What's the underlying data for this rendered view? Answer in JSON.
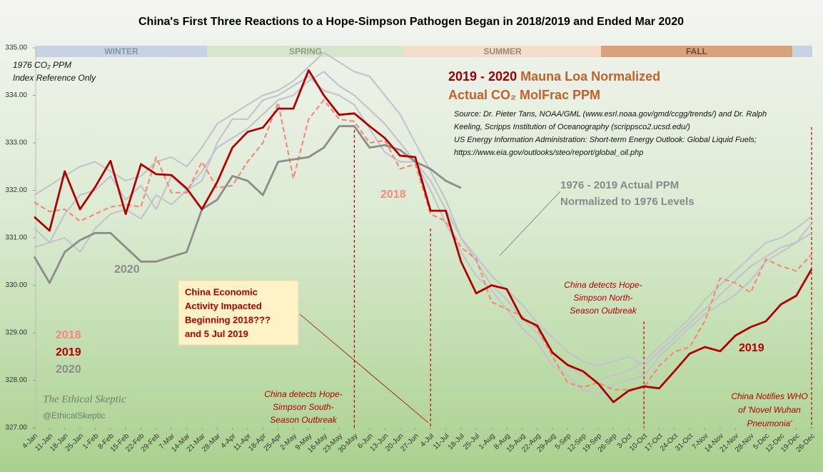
{
  "chart_data": {
    "type": "line",
    "title": "China's First Three Reactions to a Hope-Simpson Pathogen Began in 2018/2019 and Ended Mar 2020",
    "categories": [
      "4-Jan",
      "11-Jan",
      "18-Jan",
      "25-Jan",
      "1-Feb",
      "8-Feb",
      "15-Feb",
      "22-Feb",
      "29-Feb",
      "7-Mar",
      "14-Mar",
      "21-Mar",
      "28-Mar",
      "4-Apr",
      "11-Apr",
      "18-Apr",
      "25-Apr",
      "2-May",
      "9-May",
      "16-May",
      "23-May",
      "30-May",
      "6-Jun",
      "13-Jun",
      "20-Jun",
      "27-Jun",
      "4-Jul",
      "11-Jul",
      "18-Jul",
      "25-Jul",
      "1-Aug",
      "8-Aug",
      "15-Aug",
      "22-Aug",
      "29-Aug",
      "5-Sep",
      "12-Sep",
      "19-Sep",
      "26-Sep",
      "3-Oct",
      "10-Oct",
      "17-Oct",
      "24-Oct",
      "31-Oct",
      "7-Nov",
      "14-Nov",
      "21-Nov",
      "28-Nov",
      "5-Dec",
      "12-Dec",
      "19-Dec",
      "26-Dec"
    ],
    "ylim": [
      327,
      335
    ],
    "yticks": [
      {
        "value": 327,
        "label": "327.00"
      },
      {
        "value": 328,
        "label": "328.00"
      },
      {
        "value": 329,
        "label": "329.00"
      },
      {
        "value": 330,
        "label": "330.00"
      },
      {
        "value": 331,
        "label": "331.00"
      },
      {
        "value": 332,
        "label": "332.00"
      },
      {
        "value": 333,
        "label": "333.00"
      },
      {
        "value": 334,
        "label": "334.00"
      },
      {
        "value": 335,
        "label": "335.00"
      }
    ],
    "series": [
      {
        "color": "#c4c4cc",
        "values": [
          331.9,
          332.1,
          332.3,
          332.5,
          332.6,
          332.4,
          332.2,
          332.3,
          332.6,
          332.7,
          332.5,
          332.9,
          333.4,
          333.6,
          333.8,
          334.0,
          334.1,
          334.3,
          334.6,
          334.9,
          334.7,
          334.5,
          334.4,
          334.0,
          333.6,
          333.0,
          332.4,
          331.8,
          331.0,
          330.5,
          330.0,
          329.7,
          329.3,
          329.0,
          328.6,
          328.3,
          328.1,
          328.0,
          328.1,
          328.2,
          328.4,
          328.7,
          329.0,
          329.3,
          329.7,
          330.0,
          330.3,
          330.6,
          330.9,
          331.0,
          331.2,
          331.45
        ]
      },
      {
        "color": "#c4c4cc",
        "values": [
          330.8,
          330.9,
          331.0,
          330.7,
          331.2,
          331.5,
          331.6,
          331.4,
          331.9,
          331.7,
          332.0,
          332.4,
          332.9,
          333.1,
          333.3,
          333.6,
          333.9,
          334.0,
          334.3,
          334.5,
          334.2,
          334.0,
          333.7,
          333.4,
          333.0,
          332.6,
          332.2,
          331.6,
          331.0,
          330.6,
          330.2,
          329.9,
          329.6,
          329.2,
          328.9,
          328.6,
          328.4,
          328.3,
          328.4,
          328.5,
          328.3,
          328.6,
          328.9,
          329.2,
          329.5,
          329.8,
          330.1,
          330.4,
          330.6,
          330.8,
          330.9,
          331.1
        ]
      },
      {
        "color": "#c4c4cc",
        "values": [
          331.2,
          330.9,
          331.5,
          331.9,
          332.0,
          332.3,
          331.8,
          332.1,
          331.6,
          332.3,
          332.0,
          332.2,
          333.0,
          333.5,
          333.5,
          333.9,
          334.0,
          334.2,
          334.4,
          334.1,
          334.0,
          333.8,
          333.3,
          332.8,
          332.6,
          332.6,
          332.0,
          331.3,
          330.7,
          330.2,
          329.9,
          329.5,
          329.1,
          328.8,
          328.3,
          328.1,
          327.8,
          327.7,
          327.9,
          328.0,
          328.1,
          328.5,
          328.8,
          329.1,
          329.4,
          329.6,
          329.8,
          330.1,
          330.5,
          330.7,
          330.9,
          331.3
        ]
      },
      {
        "name": "2018",
        "color": "#f4897e",
        "dashed": true,
        "values": [
          331.75,
          331.55,
          331.6,
          331.35,
          331.5,
          331.65,
          331.7,
          331.65,
          332.7,
          331.95,
          331.95,
          332.6,
          332.05,
          332.1,
          332.6,
          333.0,
          333.85,
          332.25,
          333.5,
          333.9,
          333.5,
          333.45,
          333.0,
          333.05,
          332.45,
          332.55,
          331.5,
          331.35,
          330.8,
          330.55,
          329.65,
          329.5,
          329.35,
          329.1,
          328.5,
          327.95,
          327.85,
          327.95,
          327.8,
          327.8,
          327.85,
          328.3,
          328.6,
          328.7,
          329.25,
          330.15,
          330.05,
          329.85,
          330.55,
          330.4,
          330.3,
          330.65
        ]
      },
      {
        "name": "2019",
        "color": "#b00000",
        "values": [
          331.44,
          331.15,
          332.4,
          331.6,
          332.07,
          332.62,
          331.5,
          332.55,
          332.34,
          332.32,
          332.04,
          331.6,
          332.17,
          332.9,
          333.23,
          333.32,
          333.72,
          333.72,
          334.53,
          334.0,
          333.59,
          333.62,
          333.35,
          333.1,
          332.73,
          332.7,
          331.57,
          331.57,
          330.5,
          329.83,
          330.0,
          329.92,
          329.3,
          329.15,
          328.58,
          328.32,
          328.19,
          327.93,
          327.54,
          327.78,
          327.87,
          327.83,
          328.19,
          328.56,
          328.7,
          328.61,
          328.94,
          329.12,
          329.24,
          329.6,
          329.78,
          330.34
        ]
      },
      {
        "name": "2020",
        "color": "#8c8c8c",
        "values": [
          330.6,
          330.05,
          330.7,
          330.95,
          331.1,
          331.1,
          330.8,
          330.5,
          330.5,
          330.6,
          330.7,
          331.6,
          331.8,
          332.3,
          332.2,
          331.9,
          332.6,
          332.65,
          332.7,
          332.9,
          333.35,
          333.35,
          332.9,
          332.95,
          332.85,
          332.6,
          332.45,
          332.2,
          332.05,
          null,
          null,
          null,
          null,
          null,
          null,
          null,
          null,
          null,
          null,
          null,
          null,
          null,
          null,
          null,
          null,
          null,
          null,
          null,
          null,
          null,
          null,
          null
        ]
      }
    ],
    "seasons": [
      "WINTER",
      "SPRING",
      "SUMMER",
      "FALL"
    ],
    "index_note": [
      "1976 CO₂ PPM",
      "Index Reference Only"
    ],
    "heading_years": "2019 - 2020",
    "heading_line1": "Mauna  Loa Normalized",
    "heading_line2": "Actual CO₂ MolFrac PPM",
    "source": [
      "Source:  Dr. Pieter Tans, NOAA/GML (www.esrl.noaa.gov/gmd/ccgg/trends/)   and Dr.  Ralph",
      "Keeling, Scripps Institution of Oceanography (scrippsco2.ucsd.edu/)",
      "US Energy Information Administration: Short-term Energy Outlook: Global Liquid Fuels;",
      "https://www.eia.gov/outlooks/steo/report/global_oil.php"
    ],
    "background_label": [
      "1976 - 2019 Actual PPM",
      "Normalized to 1976 Levels"
    ],
    "impact_box": [
      "China Economic",
      "Activity Impacted",
      "Beginning 2018???",
      "and 5 Jul 2019"
    ],
    "annotation_south": [
      "China detects Hope-",
      "Simpson South-",
      "Season Outbreak"
    ],
    "annotation_north": [
      "China detects Hope-",
      "Simpson North-",
      "Season Outbreak"
    ],
    "annotation_who": [
      "China Notifies WHO",
      "of 'Novel Wuhan",
      "Pneumonia'"
    ],
    "watermark": [
      "The Ethical Skeptic",
      "@EthicalSkeptic"
    ]
  }
}
